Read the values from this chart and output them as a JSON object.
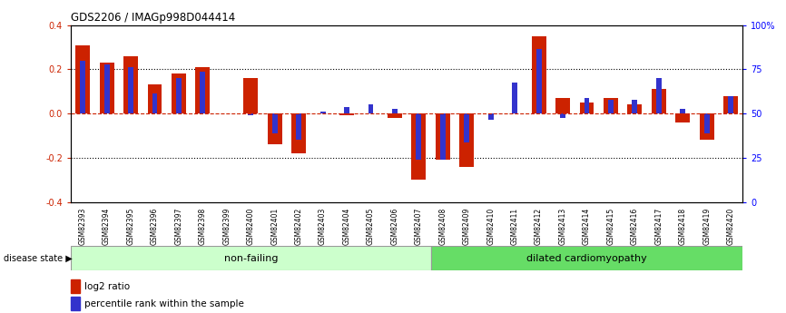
{
  "title": "GDS2206 / IMAGp998D044414",
  "samples": [
    "GSM82393",
    "GSM82394",
    "GSM82395",
    "GSM82396",
    "GSM82397",
    "GSM82398",
    "GSM82399",
    "GSM82400",
    "GSM82401",
    "GSM82402",
    "GSM82403",
    "GSM82404",
    "GSM82405",
    "GSM82406",
    "GSM82407",
    "GSM82408",
    "GSM82409",
    "GSM82410",
    "GSM82411",
    "GSM82412",
    "GSM82413",
    "GSM82414",
    "GSM82415",
    "GSM82416",
    "GSM82417",
    "GSM82418",
    "GSM82419",
    "GSM82420"
  ],
  "log2_ratio": [
    0.31,
    0.23,
    0.26,
    0.13,
    0.18,
    0.21,
    0.0,
    0.16,
    -0.14,
    -0.18,
    0.0,
    -0.01,
    0.0,
    -0.02,
    -0.3,
    -0.21,
    -0.24,
    0.0,
    0.0,
    0.35,
    0.07,
    0.05,
    0.07,
    0.04,
    0.11,
    -0.04,
    -0.12,
    0.08
  ],
  "percentile_raw": [
    0.24,
    0.22,
    0.21,
    0.09,
    0.16,
    0.19,
    0.0,
    -0.01,
    -0.09,
    -0.12,
    0.01,
    0.03,
    0.04,
    0.02,
    -0.21,
    -0.21,
    -0.13,
    -0.03,
    0.14,
    0.29,
    -0.02,
    0.07,
    0.06,
    0.06,
    0.16,
    0.02,
    -0.09,
    0.08
  ],
  "non_failing_count": 15,
  "disease_state_label": "disease state",
  "non_failing_label": "non-failing",
  "cardiomyopathy_label": "dilated cardiomyopathy",
  "legend_log2": "log2 ratio",
  "legend_pct": "percentile rank within the sample",
  "bar_color_red": "#cc2200",
  "bar_color_blue": "#3333cc",
  "ylim": [
    -0.4,
    0.4
  ],
  "yticks_left": [
    -0.4,
    -0.2,
    0.0,
    0.2,
    0.4
  ],
  "yticks_right_labels": [
    "0",
    "25",
    "50",
    "75",
    "100%"
  ],
  "non_failing_bg": "#ccffcc",
  "cardiomyo_bg": "#66dd66"
}
